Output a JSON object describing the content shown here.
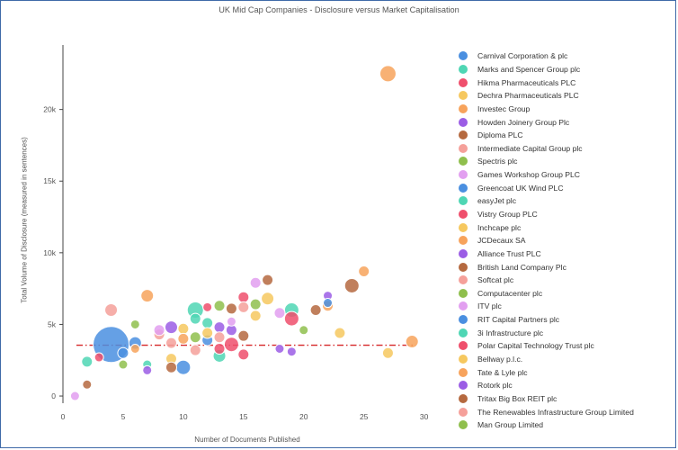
{
  "chart_data": {
    "type": "scatter",
    "title": "UK Mid Cap Companies - Disclosure versus Market Capitalisation",
    "xlabel": "Number of Documents Published",
    "ylabel": "Total Volume of Disclosure (measured in sentences)",
    "xlim": [
      0,
      31
    ],
    "ylim": [
      -500,
      24500
    ],
    "xticks": [
      0,
      5,
      10,
      15,
      20,
      25,
      30
    ],
    "yticks": [
      0,
      5000,
      10000,
      15000,
      20000
    ],
    "ytick_labels": [
      "0",
      "5k",
      "10k",
      "15k",
      "20k"
    ],
    "reference_line": {
      "y": 3550,
      "style": "dash-dot",
      "color": "#d62728"
    },
    "series": [
      {
        "name": "Carnival Corporation & plc",
        "color": "#4a8fe0",
        "points": [
          [
            4,
            3600,
            20
          ],
          [
            10,
            2000,
            8
          ]
        ]
      },
      {
        "name": "Marks and Spencer Group plc",
        "color": "#4fd6b4",
        "points": [
          [
            11,
            6000,
            9
          ],
          [
            19,
            6000,
            8
          ],
          [
            13,
            2800,
            7
          ]
        ]
      },
      {
        "name": "Hikma Pharmaceuticals PLC",
        "color": "#ef4f6c",
        "points": [
          [
            15,
            6900,
            6
          ],
          [
            12,
            6200,
            5
          ],
          [
            19,
            5400,
            8
          ]
        ]
      },
      {
        "name": "Dechra Pharmaceuticals PLC",
        "color": "#f6c85f",
        "points": [
          [
            17,
            6800,
            7
          ],
          [
            23,
            4400,
            6
          ],
          [
            27,
            3000,
            6
          ]
        ]
      },
      {
        "name": "Investec Group",
        "color": "#f7a35c",
        "points": [
          [
            27,
            22500,
            9
          ],
          [
            29,
            3800,
            7
          ],
          [
            25,
            8700,
            6
          ]
        ]
      },
      {
        "name": "Howden Joinery Group Plc",
        "color": "#9b5de5",
        "points": [
          [
            9,
            4800,
            7
          ],
          [
            22,
            7000,
            5
          ],
          [
            19,
            3100,
            5
          ]
        ]
      },
      {
        "name": "Diploma PLC",
        "color": "#b5693f",
        "points": [
          [
            17,
            8100,
            6
          ],
          [
            24,
            7700,
            8
          ],
          [
            21,
            6000,
            6
          ]
        ]
      },
      {
        "name": "Intermediate Capital Group plc",
        "color": "#f5a09a",
        "points": [
          [
            4,
            6000,
            7
          ],
          [
            8,
            4300,
            6
          ]
        ]
      },
      {
        "name": "Spectris plc",
        "color": "#8fbf4d",
        "points": [
          [
            20,
            4600,
            5
          ],
          [
            13,
            6300,
            6
          ]
        ]
      },
      {
        "name": "Games Workshop Group PLC",
        "color": "#e29ff0",
        "points": [
          [
            1,
            0,
            5
          ],
          [
            16,
            7900,
            6
          ],
          [
            14,
            5200,
            5
          ]
        ]
      },
      {
        "name": "Greencoat UK Wind PLC",
        "color": "#4a8fe0",
        "points": [
          [
            22,
            6500,
            5
          ],
          [
            6,
            3700,
            7
          ]
        ]
      },
      {
        "name": "easyJet plc",
        "color": "#4fd6b4",
        "points": [
          [
            12,
            5100,
            6
          ],
          [
            2,
            2400,
            6
          ]
        ]
      },
      {
        "name": "Vistry Group PLC",
        "color": "#ef4f6c",
        "points": [
          [
            14,
            3600,
            8
          ],
          [
            15,
            2900,
            6
          ]
        ]
      },
      {
        "name": "Inchcape plc",
        "color": "#f6c85f",
        "points": [
          [
            16,
            5600,
            6
          ],
          [
            10,
            4700,
            6
          ]
        ]
      },
      {
        "name": "JCDecaux SA",
        "color": "#f7a35c",
        "points": [
          [
            7,
            7000,
            7
          ],
          [
            22,
            6300,
            6
          ]
        ]
      },
      {
        "name": "Alliance Trust PLC",
        "color": "#9b5de5",
        "points": [
          [
            13,
            4800,
            6
          ],
          [
            18,
            3300,
            5
          ]
        ]
      },
      {
        "name": "British Land Company Plc",
        "color": "#b5693f",
        "points": [
          [
            2,
            800,
            5
          ],
          [
            14,
            6100,
            6
          ]
        ]
      },
      {
        "name": "Softcat plc",
        "color": "#f5a09a",
        "points": [
          [
            15,
            6200,
            6
          ],
          [
            9,
            3700,
            6
          ]
        ]
      },
      {
        "name": "Computacenter plc",
        "color": "#8fbf4d",
        "points": [
          [
            11,
            4100,
            6
          ],
          [
            6,
            5000,
            5
          ]
        ]
      },
      {
        "name": "ITV plc",
        "color": "#e29ff0",
        "points": [
          [
            18,
            5800,
            6
          ],
          [
            8,
            4600,
            6
          ]
        ]
      },
      {
        "name": "RIT Capital Partners plc",
        "color": "#4a8fe0",
        "points": [
          [
            12,
            3900,
            6
          ],
          [
            5,
            3000,
            6
          ]
        ]
      },
      {
        "name": "3i Infrastructure plc",
        "color": "#4fd6b4",
        "points": [
          [
            11,
            5400,
            6
          ],
          [
            7,
            2200,
            5
          ]
        ]
      },
      {
        "name": "Polar Capital Technology Trust plc",
        "color": "#ef4f6c",
        "points": [
          [
            13,
            3300,
            6
          ],
          [
            3,
            2700,
            5
          ]
        ]
      },
      {
        "name": "Bellway p.l.c.",
        "color": "#f6c85f",
        "points": [
          [
            12,
            4400,
            6
          ],
          [
            9,
            2600,
            6
          ]
        ]
      },
      {
        "name": "Tate & Lyle plc",
        "color": "#f7a35c",
        "points": [
          [
            10,
            4000,
            6
          ],
          [
            6,
            3300,
            5
          ]
        ]
      },
      {
        "name": "Rotork plc",
        "color": "#9b5de5",
        "points": [
          [
            7,
            1800,
            5
          ],
          [
            14,
            4600,
            6
          ]
        ]
      },
      {
        "name": "Tritax Big Box REIT plc",
        "color": "#b5693f",
        "points": [
          [
            9,
            2000,
            6
          ],
          [
            15,
            4200,
            6
          ]
        ]
      },
      {
        "name": "The Renewables Infrastructure Group Limited",
        "color": "#f5a09a",
        "points": [
          [
            13,
            4100,
            6
          ],
          [
            11,
            3200,
            6
          ]
        ]
      },
      {
        "name": "Man Group Limited",
        "color": "#8fbf4d",
        "points": [
          [
            16,
            6400,
            6
          ],
          [
            5,
            2200,
            5
          ]
        ]
      }
    ]
  }
}
